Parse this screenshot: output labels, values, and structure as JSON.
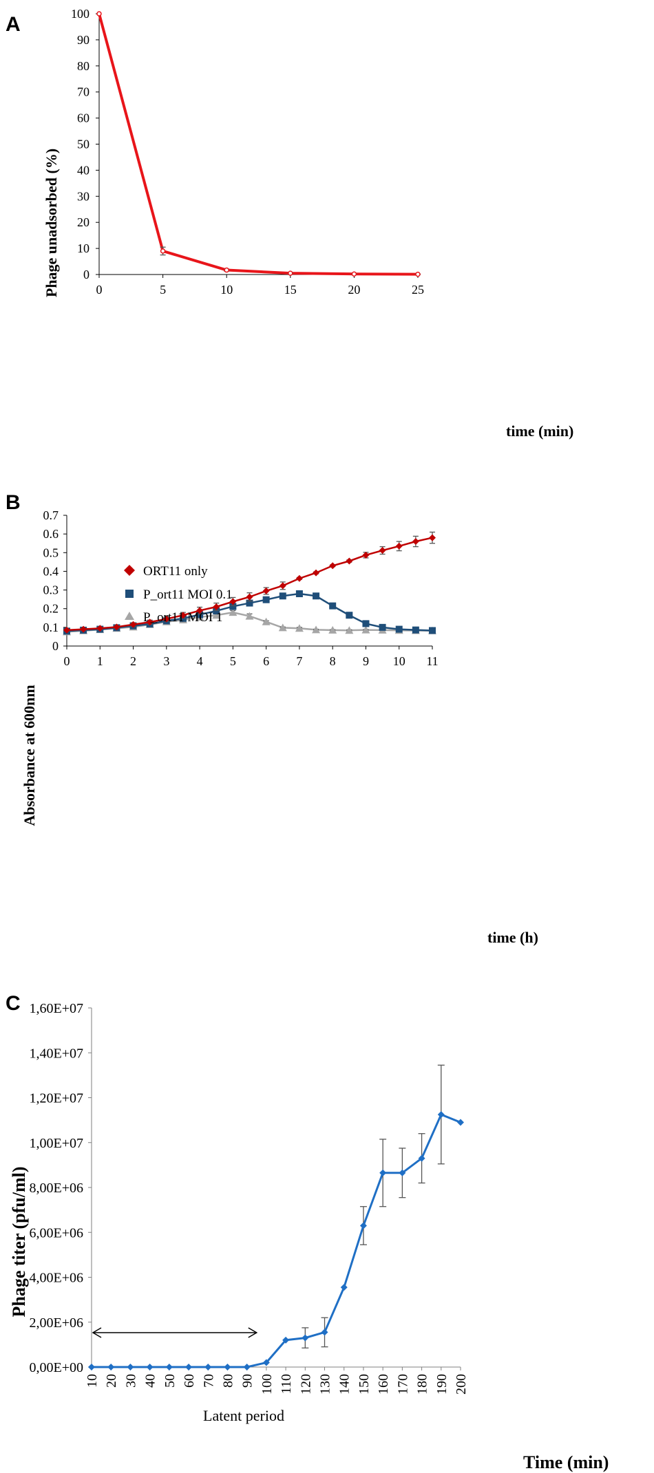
{
  "colors": {
    "red": "#e8151a",
    "darkred": "#c00000",
    "navy": "#1f4e79",
    "gray": "#a6a6a6",
    "blue": "#1f6fc5",
    "axis": "#000000"
  },
  "chart_data": [
    {
      "panel_label": "A",
      "type": "line",
      "title": "",
      "xlabel": "time (min)",
      "ylabel": "Phage unadsorbed (%)",
      "xlim": [
        0,
        25
      ],
      "ylim": [
        0,
        100
      ],
      "xticks": [
        "0",
        "5",
        "10",
        "15",
        "20",
        "25"
      ],
      "yticks": [
        "0",
        "10",
        "20",
        "30",
        "40",
        "50",
        "60",
        "70",
        "80",
        "90",
        "100"
      ],
      "series": [
        {
          "name": "Phage unadsorbed",
          "x": [
            0,
            5,
            10,
            15,
            20,
            25
          ],
          "values": [
            100,
            9,
            1.7,
            0.5,
            0.2,
            0.1
          ],
          "errors": [
            0,
            1.5,
            0.4,
            0.2,
            0.1,
            0.1
          ]
        }
      ]
    },
    {
      "panel_label": "B",
      "type": "line",
      "title": "",
      "xlabel": "time (h)",
      "ylabel": "Absorbance at 600nm",
      "xlim": [
        0,
        11
      ],
      "ylim": [
        0,
        0.7
      ],
      "xticks": [
        "0",
        "1",
        "2",
        "3",
        "4",
        "5",
        "6",
        "7",
        "8",
        "9",
        "10",
        "11"
      ],
      "yticks": [
        "0",
        "0.1",
        "0.2",
        "0.3",
        "0.4",
        "0.5",
        "0.6",
        "0.7"
      ],
      "legend_position": "top-left",
      "x": [
        0,
        0.5,
        1,
        1.5,
        2,
        2.5,
        3,
        3.5,
        4,
        4.5,
        5,
        5.5,
        6,
        6.5,
        7,
        7.5,
        8,
        8.5,
        9,
        9.5,
        10,
        10.5,
        11
      ],
      "series": [
        {
          "name": "ORT11 only",
          "marker": "diamond",
          "values": [
            0.085,
            0.09,
            0.095,
            0.102,
            0.115,
            0.128,
            0.145,
            0.165,
            0.19,
            0.21,
            0.238,
            0.263,
            0.295,
            0.323,
            0.362,
            0.392,
            0.43,
            0.455,
            0.487,
            0.512,
            0.535,
            0.56,
            0.58
          ],
          "errors": [
            0.005,
            0.006,
            0.007,
            0.008,
            0.01,
            0.011,
            0.013,
            0.015,
            0.018,
            0.02,
            0.022,
            0.022,
            0.018,
            0.02,
            0.005,
            0.005,
            0.005,
            0.006,
            0.015,
            0.02,
            0.025,
            0.028,
            0.03
          ]
        },
        {
          "name": "P_ort11 MOI 0.1",
          "marker": "square",
          "values": [
            0.08,
            0.085,
            0.09,
            0.098,
            0.108,
            0.118,
            0.135,
            0.148,
            0.168,
            0.188,
            0.212,
            0.23,
            0.248,
            0.268,
            0.28,
            0.268,
            0.215,
            0.165,
            0.12,
            0.1,
            0.09,
            0.086,
            0.083
          ],
          "errors": [
            0.004,
            0.004,
            0.005,
            0.005,
            0.006,
            0.006,
            0.007,
            0.008,
            0.008,
            0.009,
            0.01,
            0.008,
            0.008,
            0.008,
            0.007,
            0.005,
            0.006,
            0.014,
            0.006,
            0.004,
            0.004,
            0.003,
            0.003
          ]
        },
        {
          "name": "P_ort11 MOI 1",
          "marker": "triangle",
          "values": [
            0.076,
            0.082,
            0.088,
            0.095,
            0.102,
            0.115,
            0.13,
            0.14,
            0.155,
            0.165,
            0.18,
            0.16,
            0.13,
            0.098,
            0.095,
            0.087,
            0.085,
            0.084,
            0.086,
            0.085,
            0.084,
            0.083,
            0.082
          ],
          "errors": [
            0.003,
            0.003,
            0.004,
            0.004,
            0.005,
            0.005,
            0.006,
            0.007,
            0.008,
            0.008,
            0.01,
            0.012,
            0.005,
            0.004,
            0.005,
            0.003,
            0.003,
            0.003,
            0.003,
            0.003,
            0.003,
            0.003,
            0.003
          ]
        }
      ]
    },
    {
      "panel_label": "C",
      "type": "line",
      "title": "",
      "xlabel": "Time (min)",
      "ylabel": "Phage titer (pfu/ml)",
      "xlim": [
        10,
        200
      ],
      "ylim": [
        0,
        16000000
      ],
      "xticks": [
        "10",
        "20",
        "30",
        "40",
        "50",
        "60",
        "70",
        "80",
        "90",
        "100",
        "110",
        "120",
        "130",
        "140",
        "150",
        "160",
        "170",
        "180",
        "190",
        "200"
      ],
      "yticks": [
        "0,00E+00",
        "2,00E+06",
        "4,00E+06",
        "6,00E+06",
        "8,00E+06",
        "1,00E+07",
        "1,20E+07",
        "1,40E+07",
        "1,60E+07"
      ],
      "annotation": "Latent period",
      "annotation_range": [
        10,
        95
      ],
      "series": [
        {
          "name": "Phage titer",
          "marker": "diamond",
          "x": [
            10,
            20,
            30,
            40,
            50,
            60,
            70,
            80,
            90,
            100,
            110,
            120,
            130,
            140,
            150,
            160,
            170,
            180,
            190,
            200
          ],
          "values": [
            0,
            0,
            0,
            0,
            0,
            0,
            0,
            0,
            0,
            200000,
            1200000,
            1300000,
            1550000,
            3550000,
            6300000,
            8650000,
            8650000,
            9300000,
            11250000,
            10900000
          ],
          "errors": [
            0,
            0,
            0,
            0,
            0,
            0,
            0,
            0,
            0,
            0,
            0,
            450000,
            650000,
            0,
            850000,
            1500000,
            1100000,
            1100000,
            2200000,
            0
          ]
        }
      ]
    }
  ]
}
